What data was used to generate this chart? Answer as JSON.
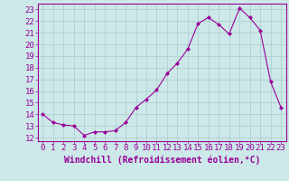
{
  "x": [
    0,
    1,
    2,
    3,
    4,
    5,
    6,
    7,
    8,
    9,
    10,
    11,
    12,
    13,
    14,
    15,
    16,
    17,
    18,
    19,
    20,
    21,
    22,
    23
  ],
  "y": [
    14.0,
    13.3,
    13.1,
    13.0,
    12.2,
    12.5,
    12.5,
    12.6,
    13.3,
    14.6,
    15.3,
    16.1,
    17.5,
    18.4,
    19.6,
    21.8,
    22.3,
    21.7,
    20.9,
    23.1,
    22.3,
    21.2,
    16.8,
    14.6
  ],
  "line_color": "#990099",
  "marker": "D",
  "marker_size": 2,
  "xlabel": "Windchill (Refroidissement éolien,°C)",
  "xlabel_fontsize": 7,
  "ytick_labels": [
    "12",
    "13",
    "14",
    "15",
    "16",
    "17",
    "18",
    "19",
    "20",
    "21",
    "22",
    "23"
  ],
  "ytick_values": [
    12,
    13,
    14,
    15,
    16,
    17,
    18,
    19,
    20,
    21,
    22,
    23
  ],
  "ylim": [
    11.7,
    23.5
  ],
  "xlim": [
    -0.5,
    23.5
  ],
  "background_color": "#cce8e8",
  "grid_color": "#aacccc",
  "tick_fontsize": 6.5
}
